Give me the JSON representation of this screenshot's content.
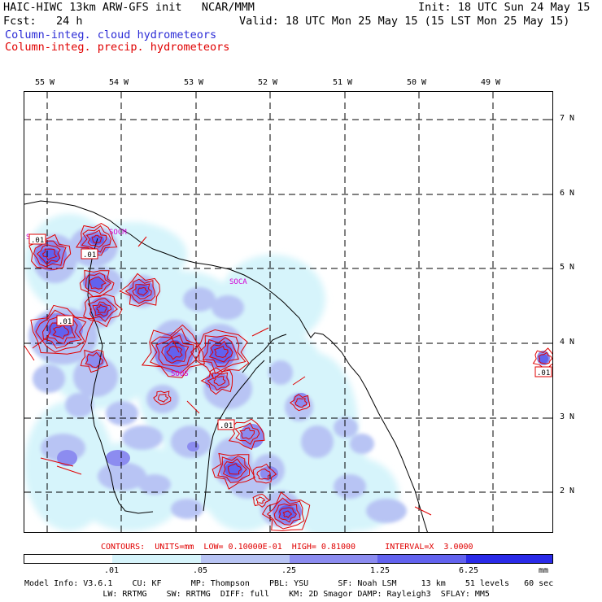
{
  "header": {
    "model_title": "HAIC-HIWC 13km ARW-GFS init   NCAR/MMM",
    "init": "Init: 18 UTC Sun 24 May 15",
    "fcst_label": "Fcst:   24 h",
    "valid": "Valid: 18 UTC Mon 25 May 15 (15 LST Mon 25 May 15)",
    "field_cloud": "Column-integ. cloud hydrometeors",
    "field_precip": "Column-integ. precip. hydrometeors"
  },
  "map": {
    "lon_labels": [
      "55 W",
      "54 W",
      "53 W",
      "52 W",
      "51 W",
      "50 W",
      "49 W"
    ],
    "lat_labels": [
      "7 N",
      "6 N",
      "5 N",
      "4 N",
      "3 N",
      "2 N"
    ],
    "station_labels": [
      "SMPT",
      "SOCM",
      "SOCA",
      "SOOS"
    ],
    "contour_labels": [
      ".01",
      ".01",
      ".01",
      ".01",
      ".01"
    ]
  },
  "contours_info": "CONTOURS:  UNITS=mm  LOW= 0.10000E-01  HIGH= 0.81000      INTERVAL=X  3.0000",
  "colorbar": {
    "ticks": [
      ".01",
      ".05",
      ".25",
      "1.25",
      "6.25"
    ],
    "unit": "mm",
    "colors": [
      "#ffffff",
      "#d6f4fb",
      "#b8c4f4",
      "#8c8cf0",
      "#6262ee",
      "#2a2ae8"
    ]
  },
  "footer": {
    "line1": "Model Info: V3.6.1    CU: KF      MP: Thompson    PBL: YSU      SF: Noah LSM     13 km    51 levels   60 sec",
    "line2": "                LW: RRTMG    SW: RRTMG  DIFF: full    KM: 2D Smagor DAMP: Rayleigh3  SFLAY: MM5"
  }
}
